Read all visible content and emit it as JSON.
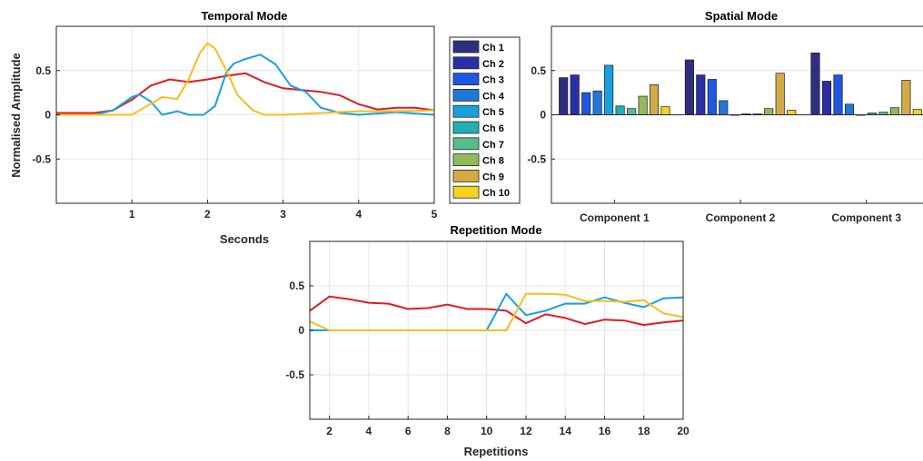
{
  "chart_data": [
    {
      "type": "line",
      "title": "Temporal Mode",
      "xlabel": "Seconds",
      "ylabel": "Normalised Amplitude",
      "xlim": [
        0,
        5
      ],
      "ylim": [
        -1,
        1
      ],
      "xticks": [
        "1",
        "2",
        "3",
        "4",
        "5"
      ],
      "yticks": [
        "0.5",
        "0",
        "-0.5"
      ],
      "grid": true,
      "series": [
        {
          "color": "#e41a1c",
          "x": [
            0,
            0.25,
            0.5,
            0.75,
            1.0,
            1.25,
            1.5,
            1.75,
            2.0,
            2.25,
            2.5,
            2.75,
            3.0,
            3.25,
            3.5,
            3.75,
            4.0,
            4.25,
            4.5,
            4.75,
            5.0
          ],
          "y": [
            0.02,
            0.02,
            0.02,
            0.05,
            0.17,
            0.33,
            0.4,
            0.37,
            0.4,
            0.44,
            0.47,
            0.37,
            0.3,
            0.28,
            0.26,
            0.22,
            0.12,
            0.06,
            0.08,
            0.08,
            0.05
          ]
        },
        {
          "color": "#1a9fe0",
          "x": [
            0,
            0.5,
            0.75,
            1.0,
            1.1,
            1.25,
            1.4,
            1.6,
            1.75,
            1.95,
            2.1,
            2.25,
            2.35,
            2.5,
            2.7,
            2.9,
            3.1,
            3.3,
            3.5,
            3.75,
            4.0,
            4.5,
            5.0
          ],
          "y": [
            0.0,
            0.0,
            0.05,
            0.2,
            0.23,
            0.15,
            0.0,
            0.04,
            0.0,
            0.0,
            0.1,
            0.48,
            0.58,
            0.63,
            0.68,
            0.57,
            0.33,
            0.26,
            0.08,
            0.02,
            0.0,
            0.03,
            0.0
          ]
        },
        {
          "color": "#f7be1a",
          "x": [
            0,
            0.5,
            0.9,
            1.0,
            1.2,
            1.4,
            1.6,
            1.75,
            1.9,
            2.0,
            2.1,
            2.25,
            2.4,
            2.6,
            2.75,
            3.0,
            3.5,
            4.0,
            4.5,
            5.0
          ],
          "y": [
            0.0,
            0.0,
            0.0,
            0.0,
            0.1,
            0.2,
            0.18,
            0.4,
            0.7,
            0.81,
            0.75,
            0.5,
            0.22,
            0.05,
            0.0,
            0.0,
            0.02,
            0.04,
            0.04,
            0.05
          ]
        }
      ]
    },
    {
      "type": "bar",
      "title": "Spatial Mode",
      "categories": [
        "Component 1",
        "Component 2",
        "Component 3"
      ],
      "ylim": [
        -1,
        1
      ],
      "yticks": [
        "0.5",
        "0",
        "-0.5"
      ],
      "grid": true,
      "legend": {
        "placement": "left",
        "entries": [
          "Ch 1",
          "Ch 2",
          "Ch 3",
          "Ch 4",
          "Ch 5",
          "Ch 6",
          "Ch 7",
          "Ch 8",
          "Ch 9",
          "Ch 10"
        ],
        "colors": [
          "#2f2f7f",
          "#2a2ea8",
          "#1f57e0",
          "#1f78d8",
          "#1ba0df",
          "#22b0b4",
          "#57be8a",
          "#93ba5a",
          "#d3ab45",
          "#f7d21e"
        ]
      },
      "series": [
        {
          "name": "Ch 1",
          "values": [
            0.42,
            0.62,
            0.7
          ]
        },
        {
          "name": "Ch 2",
          "values": [
            0.45,
            0.45,
            0.38
          ]
        },
        {
          "name": "Ch 3",
          "values": [
            0.25,
            0.4,
            0.45
          ]
        },
        {
          "name": "Ch 4",
          "values": [
            0.27,
            0.16,
            0.12
          ]
        },
        {
          "name": "Ch 5",
          "values": [
            0.56,
            0.0,
            0.0
          ]
        },
        {
          "name": "Ch 6",
          "values": [
            0.1,
            0.01,
            0.02
          ]
        },
        {
          "name": "Ch 7",
          "values": [
            0.07,
            0.01,
            0.03
          ]
        },
        {
          "name": "Ch 8",
          "values": [
            0.21,
            0.07,
            0.08
          ]
        },
        {
          "name": "Ch 9",
          "values": [
            0.34,
            0.47,
            0.39
          ]
        },
        {
          "name": "Ch 10",
          "values": [
            0.09,
            0.05,
            0.06
          ]
        }
      ]
    },
    {
      "type": "line",
      "title": "Repetition Mode",
      "xlabel": "Repetitions",
      "xlim": [
        1,
        20
      ],
      "ylim": [
        -1,
        1
      ],
      "xticks": [
        "2",
        "4",
        "6",
        "8",
        "10",
        "12",
        "14",
        "16",
        "18",
        "20"
      ],
      "yticks": [
        "0.5",
        "0",
        "-0.5"
      ],
      "grid": true,
      "series": [
        {
          "color": "#e41a1c",
          "x": [
            1,
            2,
            3,
            4,
            5,
            6,
            7,
            8,
            9,
            10,
            11,
            12,
            13,
            14,
            15,
            16,
            17,
            18,
            19,
            20
          ],
          "y": [
            0.22,
            0.38,
            0.35,
            0.31,
            0.3,
            0.24,
            0.25,
            0.29,
            0.24,
            0.24,
            0.22,
            0.08,
            0.18,
            0.14,
            0.07,
            0.12,
            0.11,
            0.06,
            0.09,
            0.11
          ]
        },
        {
          "color": "#1a9fe0",
          "x": [
            1,
            2,
            3,
            4,
            5,
            6,
            7,
            8,
            9,
            10,
            11,
            12,
            13,
            14,
            15,
            16,
            17,
            18,
            19,
            20
          ],
          "y": [
            0.0,
            0.0,
            0.0,
            0.0,
            0.0,
            0.0,
            0.0,
            0.0,
            0.0,
            0.0,
            0.41,
            0.17,
            0.22,
            0.3,
            0.3,
            0.37,
            0.31,
            0.26,
            0.36,
            0.37
          ]
        },
        {
          "color": "#f7be1a",
          "x": [
            1,
            2,
            3,
            4,
            5,
            6,
            7,
            8,
            9,
            10,
            11,
            12,
            13,
            14,
            15,
            16,
            17,
            18,
            19,
            20
          ],
          "y": [
            0.1,
            0.0,
            0.0,
            0.0,
            0.0,
            0.0,
            0.0,
            0.0,
            0.0,
            0.0,
            0.0,
            0.41,
            0.41,
            0.4,
            0.33,
            0.33,
            0.32,
            0.34,
            0.19,
            0.15
          ]
        }
      ]
    }
  ]
}
